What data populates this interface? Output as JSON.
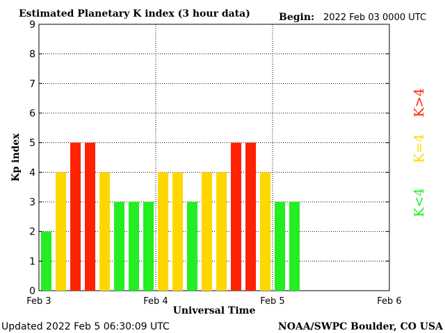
{
  "header": {
    "title": "Estimated Planetary K index (3 hour data)",
    "begin_label": "Begin:",
    "begin_value": "2022 Feb 03 0000 UTC"
  },
  "footer": {
    "updated": "Updated 2022 Feb  5 06:30:09 UTC",
    "source": "NOAA/SWPC Boulder, CO USA"
  },
  "legend": {
    "low": "K<4",
    "mid": "K=4",
    "high": "K>4"
  },
  "colors": {
    "low": "#22ee22",
    "mid": "#ffd700",
    "high": "#ff2200"
  },
  "chart_data": {
    "type": "bar",
    "title": "Estimated Planetary K index (3 hour data)",
    "xlabel": "Universal Time",
    "ylabel": "Kp index",
    "ylim": [
      0,
      9
    ],
    "yticks": [
      0,
      1,
      2,
      3,
      4,
      5,
      6,
      7,
      8,
      9
    ],
    "xtick_labels": [
      "Feb 3",
      "Feb 4",
      "Feb 5",
      "Feb 6"
    ],
    "slots_total": 24,
    "grid": true,
    "values": [
      2,
      4,
      5,
      5,
      4,
      3,
      3,
      3,
      4,
      4,
      3,
      4,
      4,
      5,
      5,
      4,
      3,
      3
    ]
  }
}
